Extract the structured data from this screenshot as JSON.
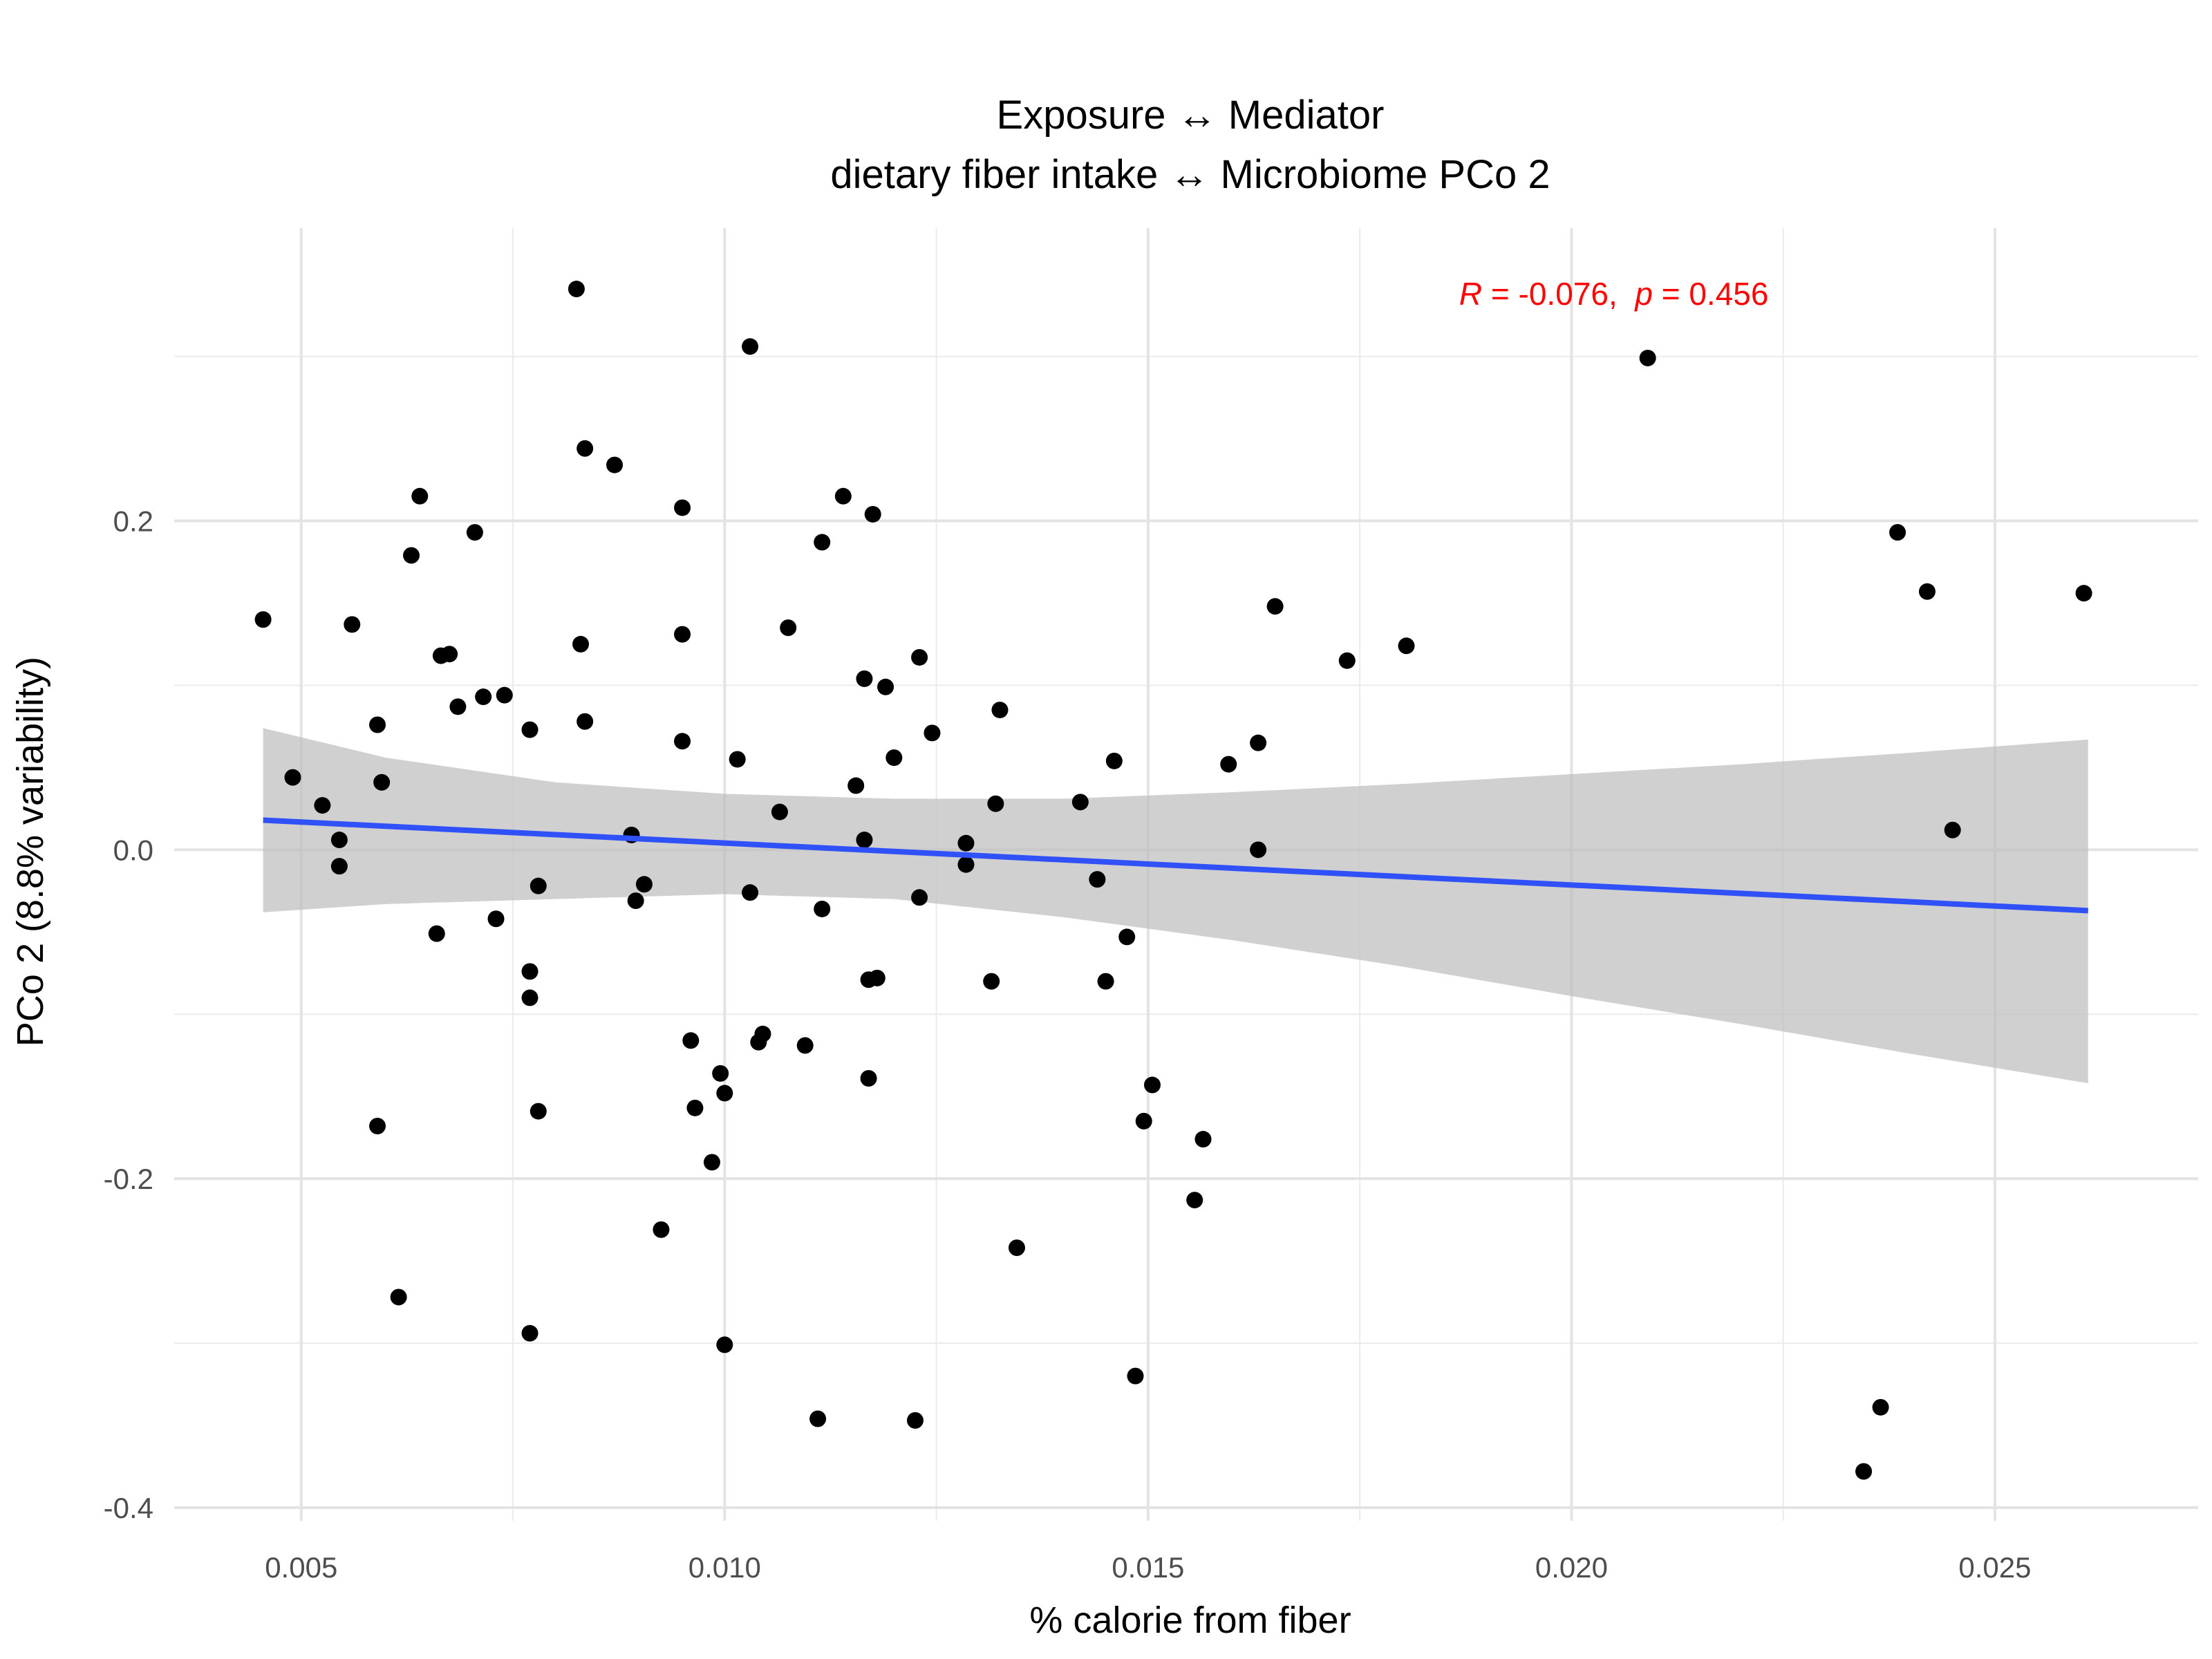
{
  "chart_data": {
    "type": "scatter",
    "title": "Exposure ↔ Mediator",
    "subtitle": "dietary fiber intake ↔ Microbiome PCo 2",
    "xlabel": "% calorie from fiber",
    "ylabel": "PCo 2 (8.8% variability)",
    "xlim": [
      0.0035,
      0.0274
    ],
    "ylim": [
      -0.408,
      0.378
    ],
    "x_ticks": [
      0.005,
      0.01,
      0.015,
      0.02,
      0.025
    ],
    "x_tick_labels": [
      "0.005",
      "0.010",
      "0.015",
      "0.020",
      "0.025"
    ],
    "y_ticks": [
      -0.4,
      -0.2,
      0.0,
      0.2
    ],
    "y_tick_labels": [
      "-0.4",
      "-0.2",
      "0.0",
      "0.2"
    ],
    "grid": true,
    "annotation": {
      "r_symbol": "R",
      "r_text": " = -0.076,  ",
      "p_symbol": "p",
      "p_text": " = 0.456",
      "color": "#FF0000",
      "x": 0.0205,
      "y": 0.338
    },
    "point_color": "#000000",
    "regression": {
      "color": "#3050F8",
      "x": [
        0.00455,
        0.0261
      ],
      "y": [
        0.018,
        -0.037
      ]
    },
    "confidence_band": {
      "color": "#BEBEBE",
      "x": [
        0.00455,
        0.006,
        0.008,
        0.01,
        0.012,
        0.014,
        0.016,
        0.018,
        0.02,
        0.022,
        0.024,
        0.0261
      ],
      "upper": [
        0.074,
        0.056,
        0.041,
        0.034,
        0.031,
        0.031,
        0.035,
        0.04,
        0.046,
        0.052,
        0.059,
        0.067
      ],
      "lower": [
        -0.038,
        -0.033,
        -0.03,
        -0.027,
        -0.03,
        -0.041,
        -0.055,
        -0.071,
        -0.089,
        -0.106,
        -0.124,
        -0.142
      ]
    },
    "points": [
      [
        0.00455,
        0.14
      ],
      [
        0.0049,
        0.044
      ],
      [
        0.00525,
        0.027
      ],
      [
        0.00545,
        0.006
      ],
      [
        0.00545,
        -0.01
      ],
      [
        0.0056,
        0.137
      ],
      [
        0.0059,
        0.076
      ],
      [
        0.00595,
        0.041
      ],
      [
        0.0059,
        -0.168
      ],
      [
        0.00615,
        -0.272
      ],
      [
        0.0063,
        0.179
      ],
      [
        0.0064,
        0.215
      ],
      [
        0.0066,
        -0.051
      ],
      [
        0.00665,
        0.118
      ],
      [
        0.00675,
        0.119
      ],
      [
        0.00685,
        0.087
      ],
      [
        0.00705,
        0.193
      ],
      [
        0.00715,
        0.093
      ],
      [
        0.0073,
        -0.042
      ],
      [
        0.0074,
        0.094
      ],
      [
        0.0077,
        0.073
      ],
      [
        0.0077,
        -0.074
      ],
      [
        0.0077,
        -0.09
      ],
      [
        0.0077,
        -0.294
      ],
      [
        0.0078,
        -0.022
      ],
      [
        0.0078,
        -0.159
      ],
      [
        0.00825,
        0.341
      ],
      [
        0.0083,
        0.125
      ],
      [
        0.00835,
        0.244
      ],
      [
        0.00835,
        0.078
      ],
      [
        0.0087,
        0.234
      ],
      [
        0.0089,
        0.009
      ],
      [
        0.00895,
        -0.031
      ],
      [
        0.00905,
        -0.021
      ],
      [
        0.00925,
        -0.231
      ],
      [
        0.0095,
        0.208
      ],
      [
        0.0095,
        0.131
      ],
      [
        0.0095,
        0.066
      ],
      [
        0.0096,
        -0.116
      ],
      [
        0.00965,
        -0.157
      ],
      [
        0.00985,
        -0.19
      ],
      [
        0.00995,
        -0.136
      ],
      [
        0.01,
        -0.148
      ],
      [
        0.01,
        -0.301
      ],
      [
        0.01015,
        0.055
      ],
      [
        0.0103,
        0.306
      ],
      [
        0.0103,
        -0.026
      ],
      [
        0.0104,
        -0.117
      ],
      [
        0.01045,
        -0.112
      ],
      [
        0.01065,
        0.023
      ],
      [
        0.01075,
        0.135
      ],
      [
        0.01095,
        -0.119
      ],
      [
        0.0111,
        -0.346
      ],
      [
        0.01115,
        0.187
      ],
      [
        0.01115,
        -0.036
      ],
      [
        0.0114,
        0.215
      ],
      [
        0.01155,
        0.039
      ],
      [
        0.01165,
        0.104
      ],
      [
        0.01165,
        0.006
      ],
      [
        0.0117,
        -0.079
      ],
      [
        0.0117,
        -0.139
      ],
      [
        0.01175,
        0.204
      ],
      [
        0.0118,
        -0.078
      ],
      [
        0.0119,
        0.099
      ],
      [
        0.012,
        0.056
      ],
      [
        0.01225,
        -0.347
      ],
      [
        0.0123,
        0.117
      ],
      [
        0.0123,
        -0.029
      ],
      [
        0.01245,
        0.071
      ],
      [
        0.01285,
        0.004
      ],
      [
        0.01285,
        -0.009
      ],
      [
        0.01315,
        -0.08
      ],
      [
        0.0132,
        0.028
      ],
      [
        0.01325,
        0.085
      ],
      [
        0.01345,
        -0.242
      ],
      [
        0.0142,
        0.029
      ],
      [
        0.0144,
        -0.018
      ],
      [
        0.0145,
        -0.08
      ],
      [
        0.0146,
        0.054
      ],
      [
        0.01475,
        -0.053
      ],
      [
        0.01485,
        -0.32
      ],
      [
        0.01495,
        -0.165
      ],
      [
        0.01505,
        -0.143
      ],
      [
        0.01555,
        -0.213
      ],
      [
        0.01565,
        -0.176
      ],
      [
        0.01595,
        0.052
      ],
      [
        0.0163,
        0.065
      ],
      [
        0.0163,
        0.0
      ],
      [
        0.0165,
        0.148
      ],
      [
        0.01735,
        0.115
      ],
      [
        0.01805,
        0.124
      ],
      [
        0.0209,
        0.299
      ],
      [
        0.02345,
        -0.378
      ],
      [
        0.02365,
        -0.339
      ],
      [
        0.02385,
        0.193
      ],
      [
        0.0242,
        0.157
      ],
      [
        0.0245,
        0.012
      ],
      [
        0.02605,
        0.156
      ]
    ]
  }
}
